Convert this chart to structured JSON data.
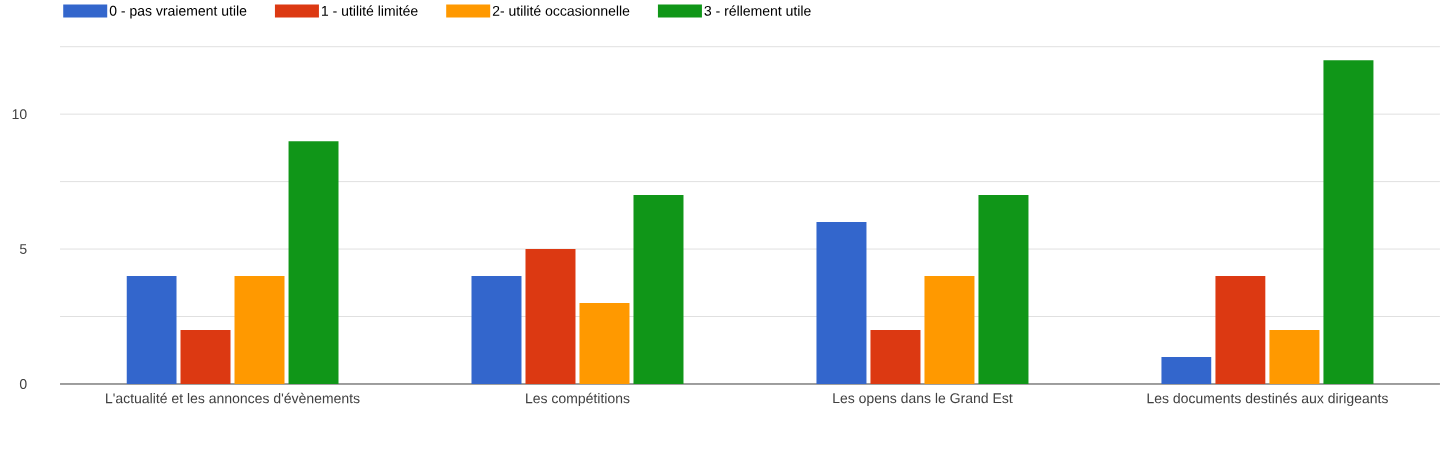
{
  "chart_data": {
    "type": "bar",
    "categories": [
      "L'actualité et les annonces d'évènements",
      "Les compétitions",
      "Les opens dans le Grand Est",
      "Les documents destinés aux dirigeants"
    ],
    "series": [
      {
        "name": "0 - pas vraiement utile",
        "color": "#3366cc",
        "values": [
          4,
          4,
          6,
          1
        ]
      },
      {
        "name": "1 - utilité limitée",
        "color": "#dc3912",
        "values": [
          2,
          5,
          2,
          4
        ]
      },
      {
        "name": "2- utilité occasionnelle",
        "color": "#ff9900",
        "values": [
          4,
          3,
          4,
          2
        ]
      },
      {
        "name": "3 - réllement utile",
        "color": "#109618",
        "values": [
          9,
          7,
          7,
          12
        ]
      }
    ],
    "ylim": [
      0,
      12.6
    ],
    "yticks": [
      0,
      {
        "value": 2.5,
        "label": null
      },
      5,
      {
        "value": 7.5,
        "label": null
      },
      10,
      {
        "value": 12.5,
        "label": null
      }
    ],
    "grid": "y",
    "legend": "top left"
  }
}
